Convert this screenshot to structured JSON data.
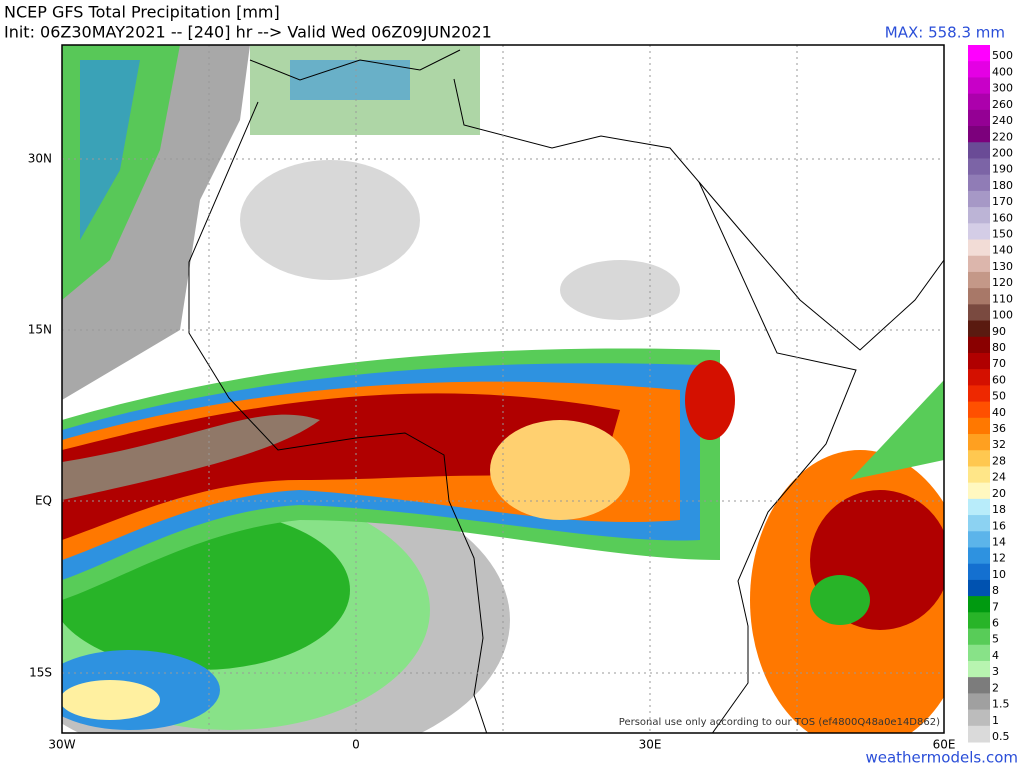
{
  "header": {
    "title": "NCEP GFS Total Precipitation [mm]",
    "subtitle": "Init: 06Z30MAY2021 -- [240] hr --> Valid Wed 06Z09JUN2021",
    "max": "MAX: 558.3 mm"
  },
  "map": {
    "lat_labels": [
      "30N",
      "15N",
      "EQ",
      "15S"
    ],
    "lon_labels": [
      "30W",
      "0",
      "30E",
      "60E"
    ],
    "notice": "Personal use only according to our TOS (ef4800Q48a0e14D862)"
  },
  "colorbar": {
    "levels": [
      {
        "label": "500",
        "color": "#ff00ff"
      },
      {
        "label": "400",
        "color": "#e400e4"
      },
      {
        "label": "300",
        "color": "#c800c8"
      },
      {
        "label": "260",
        "color": "#ac00ac"
      },
      {
        "label": "240",
        "color": "#940094"
      },
      {
        "label": "220",
        "color": "#7c007c"
      },
      {
        "label": "200",
        "color": "#6a4b96"
      },
      {
        "label": "190",
        "color": "#7c64a6"
      },
      {
        "label": "180",
        "color": "#907cb6"
      },
      {
        "label": "170",
        "color": "#a698c6"
      },
      {
        "label": "160",
        "color": "#bcb4d6"
      },
      {
        "label": "150",
        "color": "#d4cde6"
      },
      {
        "label": "140",
        "color": "#f2dcd6"
      },
      {
        "label": "130",
        "color": "#dcb6ac"
      },
      {
        "label": "120",
        "color": "#c49888"
      },
      {
        "label": "110",
        "color": "#a87868"
      },
      {
        "label": "100",
        "color": "#7a4a40"
      },
      {
        "label": "90",
        "color": "#5a1a10"
      },
      {
        "label": "80",
        "color": "#8a0000"
      },
      {
        "label": "70",
        "color": "#b00000"
      },
      {
        "label": "60",
        "color": "#d41000"
      },
      {
        "label": "50",
        "color": "#ee2800"
      },
      {
        "label": "40",
        "color": "#ff5000"
      },
      {
        "label": "36",
        "color": "#ff7800"
      },
      {
        "label": "32",
        "color": "#ffa020"
      },
      {
        "label": "28",
        "color": "#ffc850"
      },
      {
        "label": "24",
        "color": "#ffe688"
      },
      {
        "label": "20",
        "color": "#fff8c0"
      },
      {
        "label": "18",
        "color": "#b8ecfa"
      },
      {
        "label": "16",
        "color": "#8cd2f2"
      },
      {
        "label": "14",
        "color": "#5cb4ea"
      },
      {
        "label": "12",
        "color": "#2e92e0"
      },
      {
        "label": "10",
        "color": "#1470d0"
      },
      {
        "label": "8",
        "color": "#0052b0"
      },
      {
        "label": "7",
        "color": "#009a10"
      },
      {
        "label": "6",
        "color": "#28b428"
      },
      {
        "label": "5",
        "color": "#58cc58"
      },
      {
        "label": "4",
        "color": "#88e288"
      },
      {
        "label": "3",
        "color": "#b8f4b0"
      },
      {
        "label": "2",
        "color": "#7c7c7c"
      },
      {
        "label": "1.5",
        "color": "#a0a0a0"
      },
      {
        "label": "1",
        "color": "#bcbcbc"
      },
      {
        "label": "0.5",
        "color": "#dadada"
      }
    ]
  },
  "footer": {
    "site": "weathermodels.com"
  }
}
